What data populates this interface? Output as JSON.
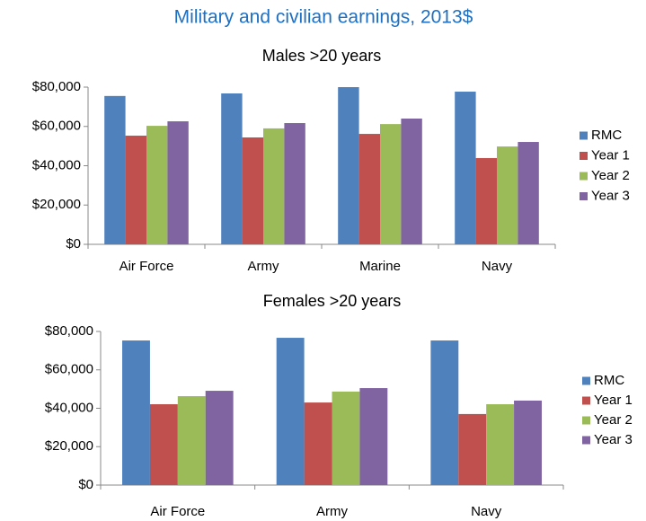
{
  "title": "Military and civilian earnings, 2013$",
  "chart_data": [
    {
      "type": "bar",
      "title": "Males >20 years",
      "categories": [
        "Air Force",
        "Army",
        "Marine",
        "Navy"
      ],
      "series": [
        {
          "name": "RMC",
          "color": "#4f81bd",
          "values": [
            75500,
            76800,
            80000,
            77700
          ]
        },
        {
          "name": "Year 1",
          "color": "#c0504d",
          "values": [
            55300,
            54400,
            56200,
            43900
          ]
        },
        {
          "name": "Year 2",
          "color": "#9bbb59",
          "values": [
            60300,
            59000,
            61200,
            49800
          ]
        },
        {
          "name": "Year 3",
          "color": "#8064a2",
          "values": [
            62600,
            61700,
            64000,
            52100
          ]
        }
      ],
      "ylim": [
        0,
        80000
      ],
      "yticks": [
        {
          "value": 0,
          "label": "$0"
        },
        {
          "value": 20000,
          "label": "$20,000"
        },
        {
          "value": 40000,
          "label": "$40,000"
        },
        {
          "value": 60000,
          "label": "$60,000"
        },
        {
          "value": 80000,
          "label": "$80,000"
        }
      ],
      "grid": false,
      "legend": "right"
    },
    {
      "type": "bar",
      "title": "Females >20 years",
      "categories": [
        "Air Force",
        "Army",
        "Navy"
      ],
      "series": [
        {
          "name": "RMC",
          "color": "#4f81bd",
          "values": [
            75300,
            76700,
            75300
          ]
        },
        {
          "name": "Year 1",
          "color": "#c0504d",
          "values": [
            42100,
            43000,
            37000
          ]
        },
        {
          "name": "Year 2",
          "color": "#9bbb59",
          "values": [
            46300,
            48700,
            42100
          ]
        },
        {
          "name": "Year 3",
          "color": "#8064a2",
          "values": [
            49100,
            50500,
            44000
          ]
        }
      ],
      "ylim": [
        0,
        80000
      ],
      "yticks": [
        {
          "value": 0,
          "label": "$0"
        },
        {
          "value": 20000,
          "label": "$20,000"
        },
        {
          "value": 40000,
          "label": "$40,000"
        },
        {
          "value": 60000,
          "label": "$60,000"
        },
        {
          "value": 80000,
          "label": "$80,000"
        }
      ],
      "grid": false,
      "legend": "right"
    }
  ]
}
